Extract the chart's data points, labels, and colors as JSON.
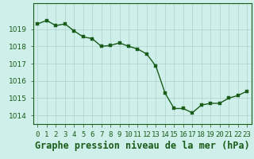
{
  "x": [
    0,
    1,
    2,
    3,
    4,
    5,
    6,
    7,
    8,
    9,
    10,
    11,
    12,
    13,
    14,
    15,
    16,
    17,
    18,
    19,
    20,
    21,
    22,
    23
  ],
  "y": [
    1019.3,
    1019.5,
    1019.2,
    1019.3,
    1018.9,
    1018.55,
    1018.45,
    1018.0,
    1018.05,
    1018.2,
    1018.0,
    1017.85,
    1017.55,
    1016.85,
    1015.3,
    1014.4,
    1014.4,
    1014.15,
    1014.6,
    1014.7,
    1014.7,
    1015.0,
    1015.15,
    1015.4
  ],
  "line_color": "#1a5c1a",
  "marker_color": "#1a5c1a",
  "bg_color": "#cff0ea",
  "grid_color": "#b0d8d0",
  "xlabel": "Graphe pression niveau de la mer (hPa)",
  "ylim": [
    1013.5,
    1020.5
  ],
  "xlim": [
    -0.5,
    23.5
  ],
  "yticks": [
    1014,
    1015,
    1016,
    1017,
    1018,
    1019
  ],
  "xtick_labels": [
    "0",
    "1",
    "2",
    "3",
    "4",
    "5",
    "6",
    "7",
    "8",
    "9",
    "10",
    "11",
    "12",
    "13",
    "14",
    "15",
    "16",
    "17",
    "18",
    "19",
    "20",
    "21",
    "22",
    "23"
  ],
  "tick_fontsize": 6.5,
  "xlabel_fontsize": 8.5,
  "marker_size": 2.5,
  "line_width": 1.0
}
